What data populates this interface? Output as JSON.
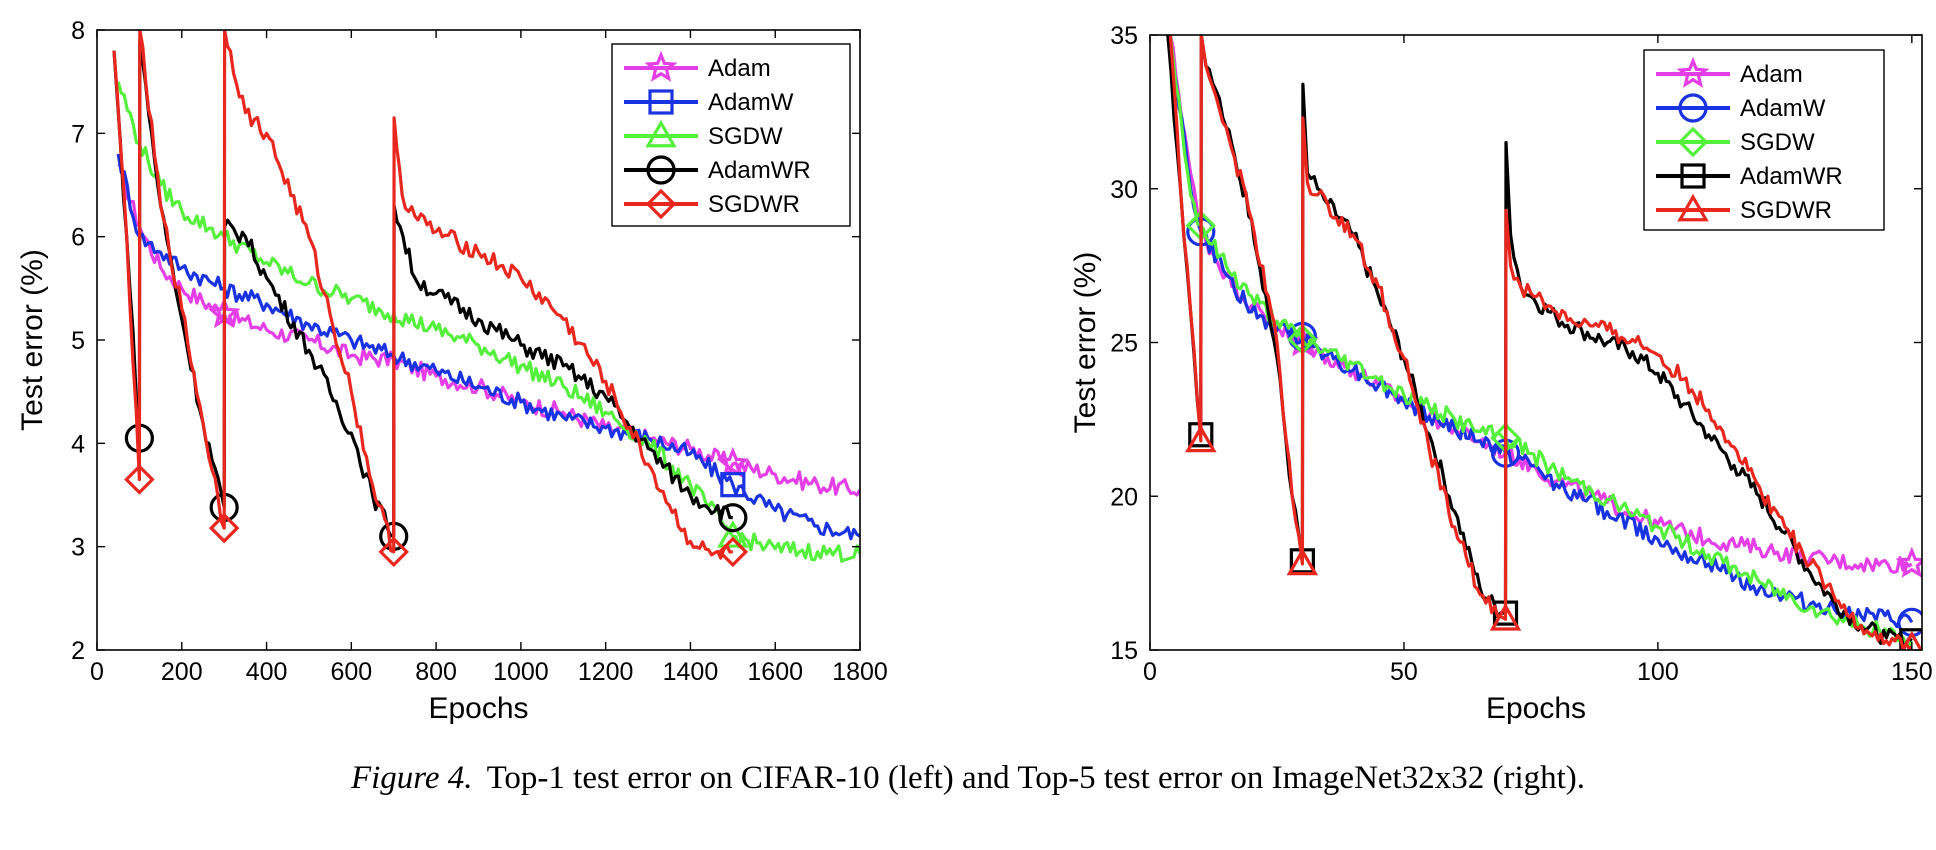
{
  "chart_data": [
    {
      "type": "line",
      "title": "",
      "xlabel": "Epochs",
      "ylabel": "Test error (%)",
      "xlim": [
        0,
        1800
      ],
      "ylim": [
        2,
        8
      ],
      "xticks": [
        "0",
        "200",
        "400",
        "600",
        "800",
        "1000",
        "1200",
        "1400",
        "1600",
        "1800"
      ],
      "yticks": [
        "2",
        "3",
        "4",
        "5",
        "6",
        "7",
        "8"
      ],
      "grid": false,
      "legend_position": "top-right",
      "series": [
        {
          "name": "Adam",
          "color": "#e43ee6",
          "marker": "star",
          "x": [
            50,
            100,
            150,
            200,
            300,
            400,
            500,
            600,
            700,
            800,
            900,
            1000,
            1100,
            1200,
            1300,
            1400,
            1500,
            1600,
            1700,
            1800
          ],
          "y": [
            6.7,
            6.1,
            5.7,
            5.5,
            5.25,
            5.1,
            5.0,
            4.85,
            4.8,
            4.65,
            4.55,
            4.4,
            4.3,
            4.15,
            4.05,
            3.95,
            3.8,
            3.7,
            3.6,
            3.55
          ],
          "marker_x": [
            300,
            1500
          ]
        },
        {
          "name": "AdamW",
          "color": "#1a33e0",
          "marker": "square",
          "x": [
            50,
            100,
            150,
            200,
            300,
            400,
            500,
            600,
            700,
            800,
            900,
            1000,
            1100,
            1200,
            1300,
            1400,
            1500,
            1600,
            1700,
            1800
          ],
          "y": [
            6.8,
            6.0,
            5.85,
            5.7,
            5.5,
            5.35,
            5.15,
            5.0,
            4.85,
            4.7,
            4.55,
            4.4,
            4.25,
            4.15,
            4.05,
            3.9,
            3.6,
            3.35,
            3.2,
            3.1
          ],
          "marker_x": [
            1500
          ]
        },
        {
          "name": "SGDW",
          "color": "#55f03c",
          "marker": "triangle",
          "x": [
            50,
            100,
            150,
            200,
            300,
            400,
            500,
            600,
            700,
            800,
            900,
            1000,
            1100,
            1200,
            1300,
            1400,
            1500,
            1600,
            1700,
            1800
          ],
          "y": [
            7.5,
            6.9,
            6.5,
            6.25,
            6.0,
            5.75,
            5.55,
            5.4,
            5.25,
            5.1,
            4.95,
            4.75,
            4.55,
            4.3,
            4.0,
            3.6,
            3.1,
            2.98,
            2.95,
            2.93
          ],
          "marker_x": [
            1500
          ]
        },
        {
          "name": "AdamWR",
          "color": "#000000",
          "marker": "circle",
          "x": [
            40,
            70,
            100,
            101,
            150,
            200,
            250,
            300,
            301,
            350,
            400,
            500,
            600,
            650,
            700,
            701,
            750,
            800,
            900,
            1000,
            1100,
            1200,
            1300,
            1400,
            1500
          ],
          "y": [
            7.8,
            6.0,
            4.05,
            7.9,
            6.3,
            5.2,
            4.2,
            3.38,
            6.1,
            6.0,
            5.6,
            4.9,
            4.1,
            3.5,
            3.1,
            6.3,
            5.6,
            5.45,
            5.2,
            4.95,
            4.75,
            4.45,
            3.95,
            3.5,
            3.28
          ],
          "marker_x": [
            100,
            300,
            700,
            1500
          ]
        },
        {
          "name": "SGDWR",
          "color": "#e8281e",
          "marker": "diamond",
          "x": [
            40,
            70,
            100,
            101,
            150,
            200,
            250,
            300,
            301,
            350,
            400,
            500,
            600,
            650,
            700,
            701,
            720,
            750,
            800,
            900,
            1000,
            1100,
            1200,
            1300,
            1350,
            1400,
            1450,
            1500
          ],
          "y": [
            7.8,
            6.0,
            3.65,
            8.0,
            6.3,
            5.3,
            4.2,
            3.18,
            8.0,
            7.2,
            7.0,
            6.0,
            4.5,
            3.6,
            2.95,
            7.15,
            6.4,
            6.2,
            6.05,
            5.85,
            5.6,
            5.2,
            4.6,
            3.8,
            3.4,
            3.05,
            2.92,
            2.95
          ],
          "marker_x": [
            100,
            300,
            700,
            1500
          ]
        }
      ]
    },
    {
      "type": "line",
      "title": "",
      "xlabel": "Epochs",
      "ylabel": "Test error (%)",
      "xlim": [
        0,
        152
      ],
      "ylim": [
        15,
        35
      ],
      "xticks": [
        "0",
        "50",
        "100",
        "150"
      ],
      "xtick_values": [
        0,
        50,
        100,
        150
      ],
      "yticks": [
        "15",
        "20",
        "25",
        "30",
        "35"
      ],
      "grid": false,
      "legend_position": "top-right",
      "series": [
        {
          "name": "Adam",
          "color": "#e43ee6",
          "marker": "star",
          "x": [
            4,
            8,
            10,
            15,
            20,
            25,
            30,
            35,
            40,
            45,
            50,
            55,
            60,
            65,
            70,
            75,
            80,
            90,
            100,
            110,
            120,
            130,
            140,
            150
          ],
          "y": [
            35,
            30.5,
            28.6,
            27.2,
            26.2,
            25.5,
            25.0,
            24.5,
            24.1,
            23.6,
            23.1,
            22.6,
            22.2,
            21.8,
            21.4,
            21.0,
            20.5,
            19.8,
            19.1,
            18.6,
            18.3,
            18.0,
            17.8,
            17.8
          ],
          "marker_x": [
            30,
            150
          ]
        },
        {
          "name": "AdamW",
          "color": "#1a33e0",
          "marker": "circle",
          "x": [
            4,
            8,
            10,
            15,
            20,
            25,
            30,
            35,
            40,
            45,
            50,
            55,
            60,
            65,
            70,
            75,
            80,
            90,
            100,
            110,
            120,
            130,
            140,
            150
          ],
          "y": [
            35,
            30.0,
            28.6,
            27.2,
            26.0,
            25.4,
            25.2,
            24.6,
            24.1,
            23.6,
            23.1,
            22.6,
            22.2,
            21.8,
            21.4,
            21.0,
            20.4,
            19.5,
            18.6,
            17.8,
            17.0,
            16.5,
            16.1,
            15.9
          ],
          "marker_x": [
            10,
            30,
            70,
            150
          ]
        },
        {
          "name": "SGDW",
          "color": "#55f03c",
          "marker": "diamond",
          "x": [
            4,
            8,
            10,
            15,
            20,
            25,
            30,
            35,
            40,
            45,
            50,
            55,
            60,
            65,
            70,
            75,
            80,
            90,
            100,
            110,
            120,
            130,
            140,
            150
          ],
          "y": [
            35,
            29.8,
            28.8,
            27.5,
            26.5,
            25.7,
            25.1,
            24.7,
            24.3,
            23.8,
            23.3,
            22.9,
            22.5,
            22.1,
            21.9,
            21.4,
            20.8,
            19.9,
            19.0,
            18.1,
            17.2,
            16.4,
            15.8,
            15.3
          ],
          "marker_x": [
            10,
            30,
            70
          ]
        },
        {
          "name": "AdamWR",
          "color": "#000000",
          "marker": "square",
          "x": [
            3.5,
            6,
            8,
            10,
            10.1,
            11,
            13,
            15,
            20,
            25,
            28,
            30,
            30.1,
            31,
            33,
            35,
            40,
            45,
            50,
            55,
            60,
            65,
            69,
            70,
            70.1,
            71,
            73,
            75,
            80,
            85,
            90,
            95,
            100,
            105,
            110,
            115,
            120,
            125,
            130,
            135,
            140,
            145,
            150
          ],
          "y": [
            35,
            30,
            26,
            22.0,
            35,
            34,
            33.2,
            32,
            29,
            24.5,
            20,
            17.9,
            33.4,
            30.5,
            30,
            29.5,
            28.5,
            26.5,
            24.5,
            22,
            19.5,
            17,
            16.2,
            16.2,
            31.5,
            28.5,
            26.8,
            26.5,
            25.8,
            25.4,
            25.0,
            24.7,
            24.0,
            23.0,
            22.0,
            21.0,
            20.0,
            18.8,
            17.5,
            16.5,
            15.8,
            15.4,
            15.3
          ],
          "marker_x": [
            10,
            30,
            70,
            150
          ]
        },
        {
          "name": "SGDWR",
          "color": "#e8281e",
          "marker": "triangle",
          "x": [
            4,
            6,
            8,
            10,
            10.1,
            11,
            13,
            15,
            20,
            25,
            28,
            30,
            30.1,
            31,
            33,
            35,
            40,
            45,
            50,
            55,
            60,
            65,
            69,
            70,
            70.1,
            71,
            73,
            75,
            80,
            85,
            90,
            95,
            100,
            105,
            110,
            115,
            120,
            125,
            130,
            135,
            140,
            145,
            150
          ],
          "y": [
            35,
            30,
            26,
            21.8,
            35,
            34,
            33,
            32,
            29,
            25,
            20,
            17.8,
            32.3,
            30.2,
            29.8,
            29.5,
            28.5,
            26.8,
            24.5,
            21.5,
            19,
            16.8,
            16.1,
            16.0,
            29.3,
            27.5,
            26.8,
            26.6,
            26.0,
            25.6,
            25.4,
            25.1,
            24.6,
            23.8,
            22.8,
            21.6,
            20.3,
            19.0,
            17.8,
            16.6,
            15.8,
            15.3,
            15.1
          ],
          "marker_x": [
            10,
            30,
            70,
            150
          ]
        }
      ]
    }
  ],
  "caption": {
    "label": "Figure 4.",
    "text": "Top-1 test error on CIFAR-10 (left) and Top-5 test error on ImageNet32x32 (right)."
  }
}
